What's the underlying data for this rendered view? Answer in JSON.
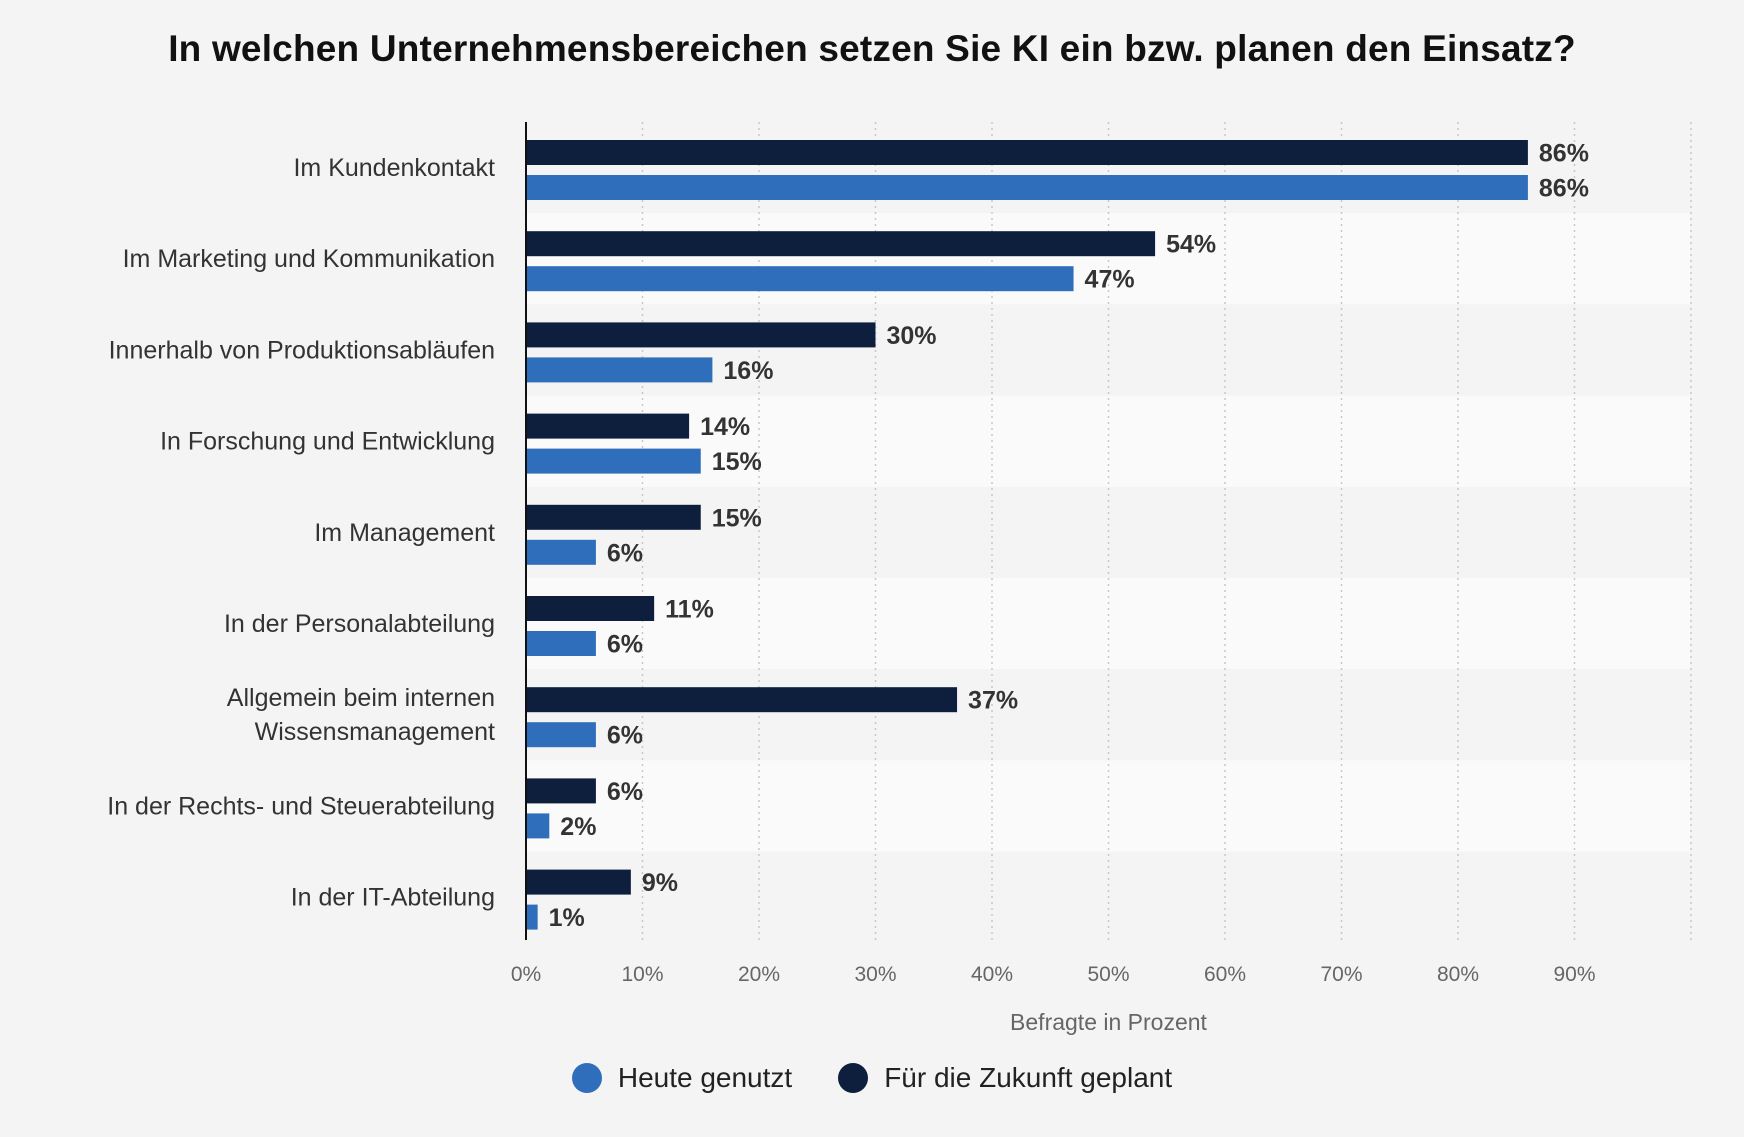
{
  "chart_data": {
    "type": "bar",
    "orientation": "horizontal",
    "title": "In welchen Unternehmensbereichen setzen Sie KI ein bzw. planen den Einsatz?",
    "xlabel": "Befragte in Prozent",
    "ylabel": "",
    "xlim": [
      0,
      100
    ],
    "xticks": [
      0,
      10,
      20,
      30,
      40,
      50,
      60,
      70,
      80,
      90
    ],
    "xtick_labels": [
      "0%",
      "10%",
      "20%",
      "30%",
      "40%",
      "50%",
      "60%",
      "70%",
      "80%",
      "90%"
    ],
    "grid": "vertical dotted",
    "legend_position": "bottom",
    "categories": [
      [
        "Im Kundenkontakt"
      ],
      [
        "Im Marketing und Kommunikation"
      ],
      [
        "Innerhalb von Produktionsabläufen"
      ],
      [
        "In Forschung und Entwicklung"
      ],
      [
        "Im Management"
      ],
      [
        "In der Personalabteilung"
      ],
      [
        "Allgemein beim internen",
        "Wissensmanagement"
      ],
      [
        "In der Rechts- und Steuerabteilung"
      ],
      [
        "In der IT-Abteilung"
      ]
    ],
    "series": [
      {
        "name": "Für die Zukunft geplant",
        "color": "#0d1f3c",
        "values": [
          86,
          54,
          30,
          14,
          15,
          11,
          37,
          6,
          9
        ],
        "labels": [
          "86%",
          "54%",
          "30%",
          "14%",
          "15%",
          "11%",
          "37%",
          "6%",
          "9%"
        ]
      },
      {
        "name": "Heute genutzt",
        "color": "#2f6eba",
        "values": [
          86,
          47,
          16,
          15,
          6,
          6,
          6,
          2,
          1
        ],
        "labels": [
          "86%",
          "47%",
          "16%",
          "15%",
          "6%",
          "6%",
          "6%",
          "2%",
          "1%"
        ]
      }
    ]
  },
  "legend": {
    "items": [
      {
        "label": "Heute genutzt",
        "color": "#2f6eba"
      },
      {
        "label": "Für die Zukunft geplant",
        "color": "#0d1f3c"
      }
    ]
  }
}
